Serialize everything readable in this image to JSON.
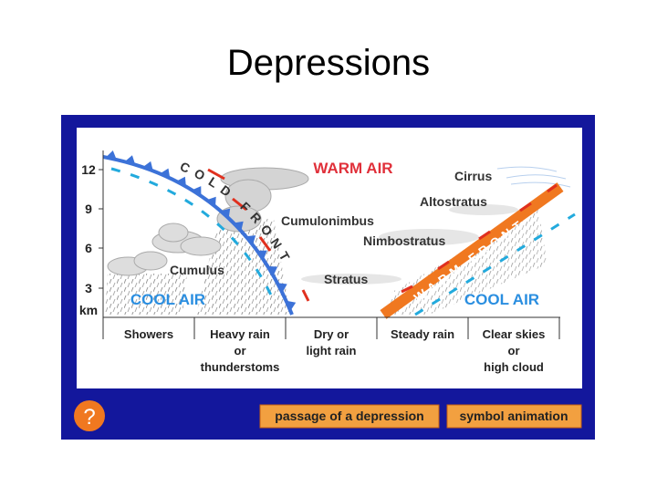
{
  "title": "Depressions",
  "diagram": {
    "altitude_labels": [
      "12",
      "9",
      "6",
      "3"
    ],
    "altitude_unit": "km",
    "air_labels": {
      "warm": "WARM AIR",
      "cool_left": "COOL AIR",
      "cool_right": "COOL AIR"
    },
    "fronts": {
      "cold": "COLD FRONT",
      "warm": "WARM FRONT"
    },
    "clouds": [
      "Cirrus",
      "Altostratus",
      "Cumulonimbus",
      "Nimbostratus",
      "Stratus",
      "Cumulus"
    ],
    "weather": [
      [
        "Showers"
      ],
      [
        "Heavy rain",
        "or",
        "thunderstoms"
      ],
      [
        "Dry or",
        "light rain"
      ],
      [
        "Steady rain"
      ],
      [
        "Clear skies",
        "or",
        "high cloud"
      ]
    ]
  },
  "buttons": {
    "help": "?",
    "passage": "passage of a depression",
    "animation": "symbol animation"
  }
}
